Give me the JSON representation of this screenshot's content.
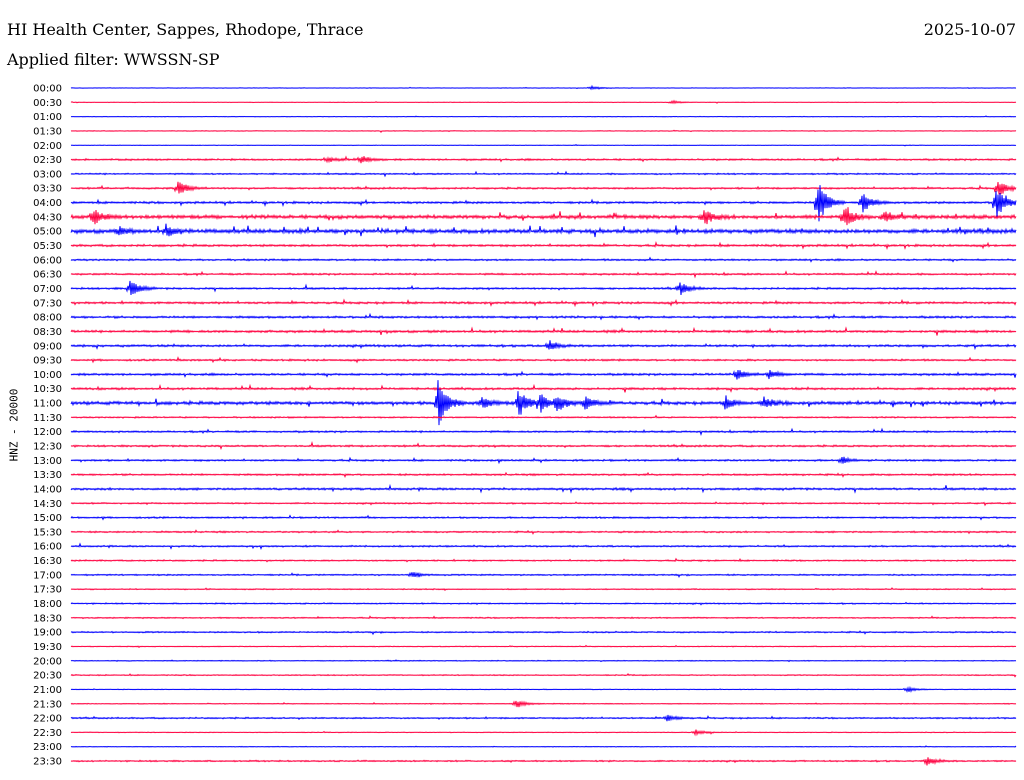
{
  "header": {
    "title": "HI Health Center, Sappes, Rhodope, Thrace",
    "filter": "Applied filter: WWSSN-SP",
    "date": "2025-10-07"
  },
  "chart_data": {
    "type": "line",
    "title": "HI Health Center, Sappes, Rhodope, Thrace",
    "subtitle": "Applied filter: WWSSN-SP",
    "ylabel": "HNZ - 20000",
    "colors": [
      "#0000ff",
      "#ff0040"
    ],
    "rows": [
      "00:00",
      "00:30",
      "01:00",
      "01:30",
      "02:00",
      "02:30",
      "03:00",
      "03:30",
      "04:00",
      "04:30",
      "05:00",
      "05:30",
      "06:00",
      "06:30",
      "07:00",
      "07:30",
      "08:00",
      "08:30",
      "09:00",
      "09:30",
      "10:00",
      "10:30",
      "11:00",
      "11:30",
      "12:00",
      "12:30",
      "13:00",
      "13:30",
      "14:00",
      "14:30",
      "15:00",
      "15:30",
      "16:00",
      "16:30",
      "17:00",
      "17:30",
      "18:00",
      "18:30",
      "19:00",
      "19:30",
      "20:00",
      "20:30",
      "21:00",
      "21:30",
      "22:00",
      "22:30",
      "23:00",
      "23:30"
    ],
    "noise": [
      0.3,
      0.3,
      0.3,
      0.4,
      0.3,
      1.0,
      0.8,
      1.0,
      1.2,
      2.0,
      2.2,
      1.2,
      1.0,
      1.0,
      1.0,
      1.2,
      1.2,
      1.3,
      1.2,
      1.0,
      1.2,
      1.2,
      1.8,
      0.8,
      1.0,
      1.0,
      1.0,
      1.0,
      1.2,
      0.8,
      0.9,
      0.9,
      0.9,
      0.8,
      0.8,
      0.6,
      0.7,
      0.7,
      0.8,
      0.5,
      0.5,
      0.6,
      0.4,
      0.5,
      0.8,
      0.4,
      0.4,
      0.8
    ],
    "events": [
      {
        "row": 0,
        "t": 0.55,
        "amp": 2
      },
      {
        "row": 1,
        "t": 0.635,
        "amp": 2
      },
      {
        "row": 5,
        "t": 0.306,
        "amp": 5
      },
      {
        "row": 5,
        "t": 0.27,
        "amp": 3
      },
      {
        "row": 7,
        "t": 0.113,
        "amp": 8
      },
      {
        "row": 7,
        "t": 0.98,
        "amp": 10
      },
      {
        "row": 8,
        "t": 0.79,
        "amp": 25
      },
      {
        "row": 8,
        "t": 0.836,
        "amp": 12
      },
      {
        "row": 8,
        "t": 0.978,
        "amp": 20
      },
      {
        "row": 9,
        "t": 0.023,
        "amp": 9
      },
      {
        "row": 9,
        "t": 0.669,
        "amp": 10
      },
      {
        "row": 9,
        "t": 0.817,
        "amp": 12
      },
      {
        "row": 9,
        "t": 0.86,
        "amp": 6
      },
      {
        "row": 10,
        "t": 0.1,
        "amp": 6
      },
      {
        "row": 10,
        "t": 0.05,
        "amp": 4
      },
      {
        "row": 14,
        "t": 0.062,
        "amp": 10
      },
      {
        "row": 14,
        "t": 0.644,
        "amp": 7
      },
      {
        "row": 18,
        "t": 0.505,
        "amp": 6
      },
      {
        "row": 20,
        "t": 0.704,
        "amp": 6
      },
      {
        "row": 20,
        "t": 0.738,
        "amp": 5
      },
      {
        "row": 22,
        "t": 0.388,
        "amp": 25
      },
      {
        "row": 22,
        "t": 0.434,
        "amp": 7
      },
      {
        "row": 22,
        "t": 0.473,
        "amp": 15
      },
      {
        "row": 22,
        "t": 0.496,
        "amp": 10
      },
      {
        "row": 22,
        "t": 0.514,
        "amp": 10
      },
      {
        "row": 22,
        "t": 0.543,
        "amp": 8
      },
      {
        "row": 22,
        "t": 0.692,
        "amp": 6
      },
      {
        "row": 22,
        "t": 0.733,
        "amp": 6
      },
      {
        "row": 26,
        "t": 0.815,
        "amp": 4
      },
      {
        "row": 34,
        "t": 0.36,
        "amp": 4
      },
      {
        "row": 42,
        "t": 0.884,
        "amp": 3
      },
      {
        "row": 43,
        "t": 0.47,
        "amp": 5
      },
      {
        "row": 44,
        "t": 0.63,
        "amp": 4
      },
      {
        "row": 45,
        "t": 0.66,
        "amp": 3
      },
      {
        "row": 47,
        "t": 0.905,
        "amp": 5
      }
    ]
  }
}
